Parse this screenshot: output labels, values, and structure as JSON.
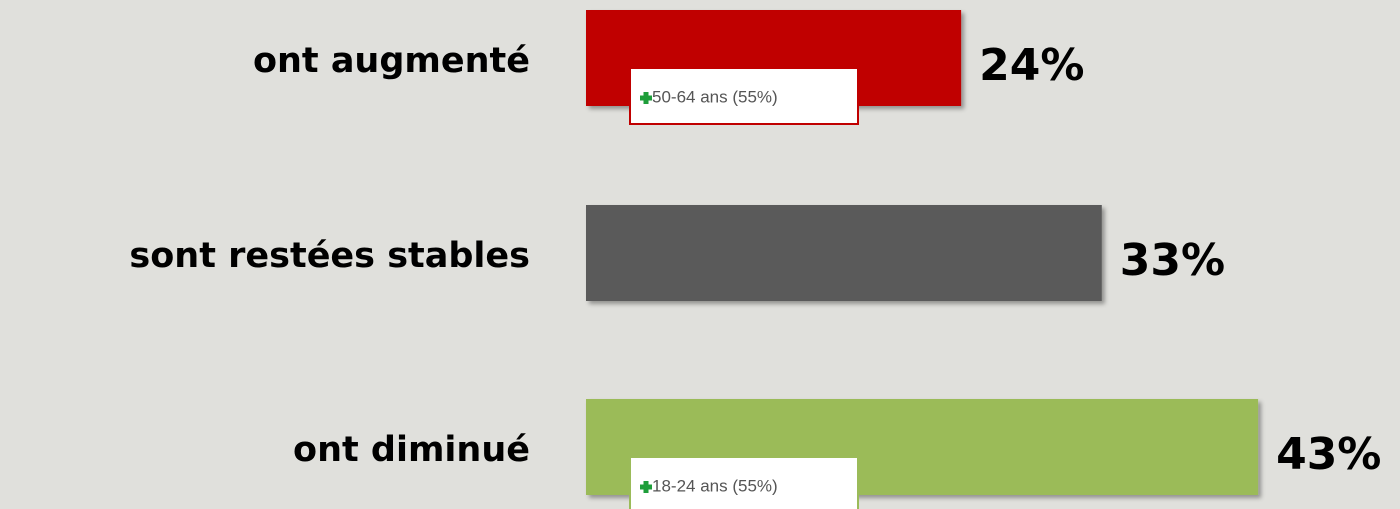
{
  "chart_data": {
    "type": "bar",
    "orientation": "horizontal",
    "categories": [
      "ont augmenté",
      "sont restées stables",
      "ont diminué"
    ],
    "values": [
      24,
      33,
      43
    ],
    "value_labels": [
      "24%",
      "33%",
      "43%"
    ],
    "colors": [
      "#c00000",
      "#5a5a5a",
      "#9bbb59"
    ],
    "annotations": [
      "50-64 ans (55%)",
      null,
      "18-24 ans (55%)"
    ]
  }
}
